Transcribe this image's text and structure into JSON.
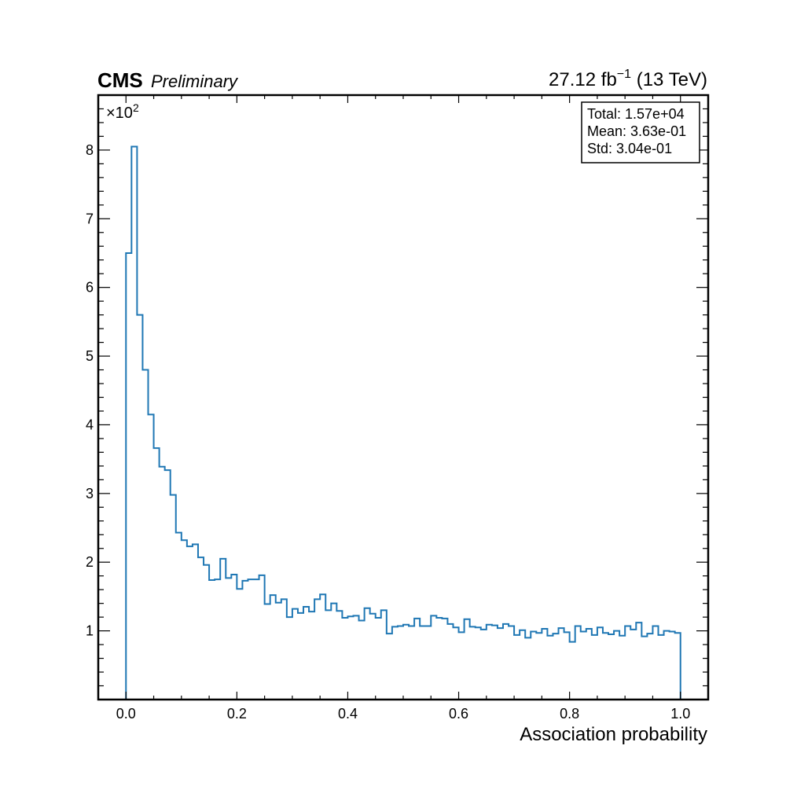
{
  "header": {
    "experiment": "CMS",
    "status": "Preliminary",
    "lumi_value": "27.12",
    "lumi_unit": "fb",
    "lumi_exponent": "−1",
    "energy": "(13 TeV)"
  },
  "stats_box": {
    "total": "Total: 1.57e+04",
    "mean": "Mean: 3.63e-01",
    "std": "Std: 3.04e-01"
  },
  "y_multiplier": {
    "base": "×10",
    "exponent": "2"
  },
  "colors": {
    "histogram": "#1f77b4",
    "axes": "#000000"
  },
  "chart_data": {
    "type": "histogram",
    "title": "",
    "xlabel": "Association probability",
    "ylabel": "",
    "xlim": [
      -0.05,
      1.05
    ],
    "ylim": [
      0,
      8.8
    ],
    "y_scale_factor": 100,
    "x_ticks": [
      0.0,
      0.2,
      0.4,
      0.6,
      0.8,
      1.0
    ],
    "x_tick_labels": [
      "0.0",
      "0.2",
      "0.4",
      "0.6",
      "0.8",
      "1.0"
    ],
    "y_ticks": [
      1,
      2,
      3,
      4,
      5,
      6,
      7,
      8
    ],
    "y_tick_labels": [
      "1",
      "2",
      "3",
      "4",
      "5",
      "6",
      "7",
      "8"
    ],
    "grid": false,
    "bin_range": [
      0.0,
      1.0
    ],
    "n_bins": 100,
    "values": [
      6.5,
      8.05,
      5.6,
      4.8,
      4.15,
      3.66,
      3.39,
      3.34,
      2.98,
      2.43,
      2.32,
      2.23,
      2.26,
      2.07,
      1.96,
      1.74,
      1.75,
      2.05,
      1.77,
      1.82,
      1.61,
      1.73,
      1.75,
      1.75,
      1.81,
      1.39,
      1.52,
      1.41,
      1.46,
      1.2,
      1.32,
      1.26,
      1.35,
      1.28,
      1.46,
      1.53,
      1.3,
      1.4,
      1.29,
      1.19,
      1.21,
      1.22,
      1.15,
      1.33,
      1.25,
      1.19,
      1.3,
      0.96,
      1.06,
      1.07,
      1.09,
      1.07,
      1.18,
      1.07,
      1.07,
      1.22,
      1.19,
      1.18,
      1.1,
      1.05,
      0.98,
      1.17,
      1.06,
      1.05,
      1.02,
      1.09,
      1.08,
      1.04,
      1.1,
      1.07,
      0.94,
      1.01,
      0.9,
      0.99,
      0.97,
      1.03,
      0.93,
      0.96,
      1.04,
      0.98,
      0.84,
      1.07,
      0.99,
      1.03,
      0.94,
      1.05,
      0.97,
      0.95,
      1.0,
      0.93,
      1.07,
      1.02,
      1.12,
      0.92,
      0.96,
      1.07,
      0.94,
      1.0,
      0.99,
      0.97
    ]
  }
}
